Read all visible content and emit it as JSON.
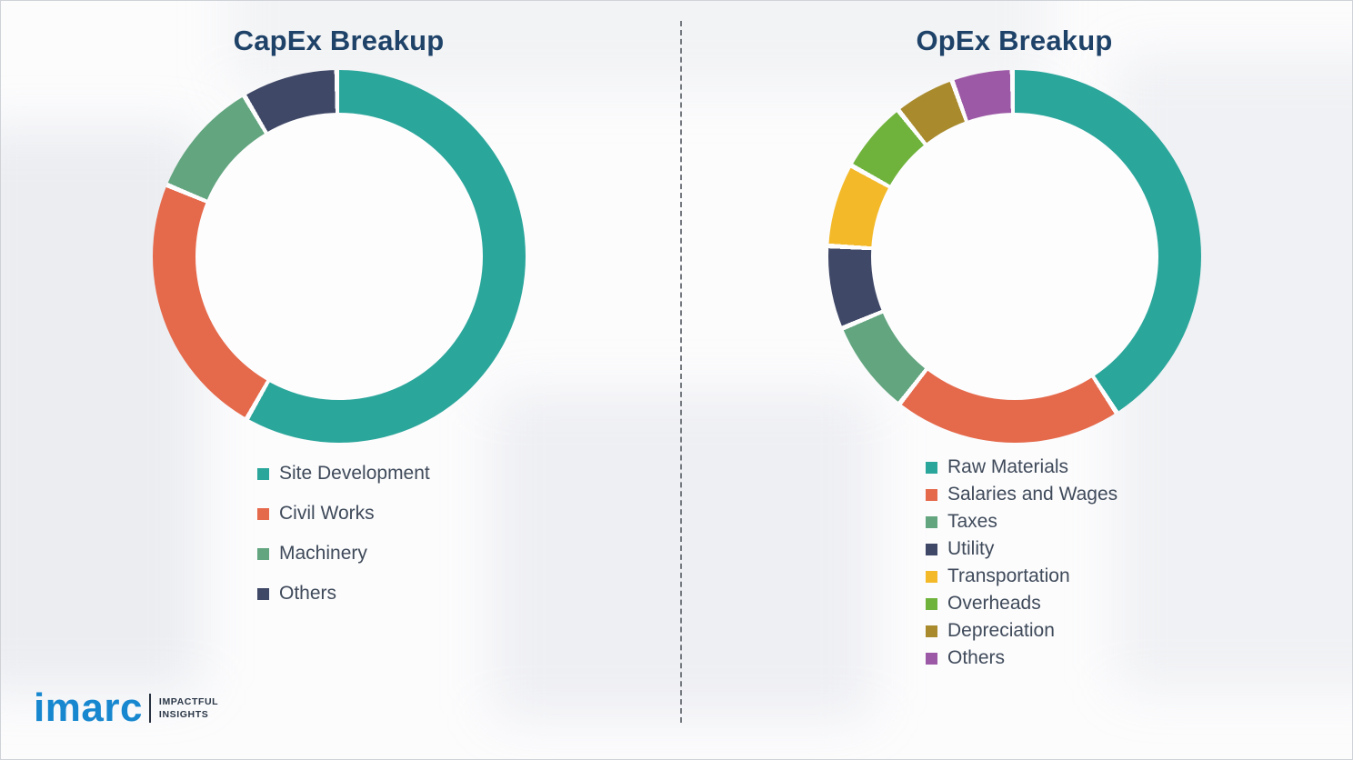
{
  "chart_data": [
    {
      "type": "pie",
      "subtype": "donut",
      "title": "CapEx Breakup",
      "categories": [
        "Site Development",
        "Civil Works",
        "Machinery",
        "Others"
      ],
      "values": [
        59,
        23,
        10,
        8
      ],
      "colors": [
        "#2ba69b",
        "#e5694b",
        "#62a57f",
        "#3f4867"
      ],
      "legend_position": "bottom-left",
      "start_angle_deg": 0,
      "gap_degrees": 1.5,
      "donut_hole_ratio": 0.77
    },
    {
      "type": "pie",
      "subtype": "donut",
      "title": "OpEx Breakup",
      "categories": [
        "Raw Materials",
        "Salaries and Wages",
        "Taxes",
        "Utility",
        "Transportation",
        "Overheads",
        "Depreciation",
        "Others"
      ],
      "values": [
        42,
        20,
        8,
        7,
        7,
        6,
        5,
        5
      ],
      "colors": [
        "#2ba69b",
        "#e5694b",
        "#62a57f",
        "#3f4867",
        "#f3b929",
        "#6fb33c",
        "#a98b2e",
        "#9c59a5"
      ],
      "legend_position": "bottom-left",
      "start_angle_deg": 0,
      "gap_degrees": 1.5,
      "donut_hole_ratio": 0.77
    }
  ],
  "logo": {
    "brand": "imarc",
    "tagline_line1": "IMPACTFUL",
    "tagline_line2": "INSIGHTS"
  }
}
